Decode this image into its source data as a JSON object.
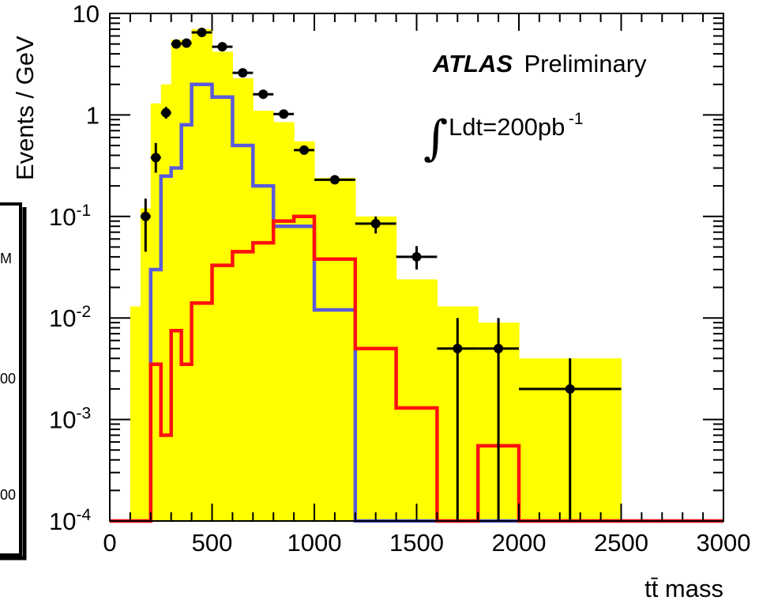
{
  "chart_data": {
    "type": "histogram",
    "title": "",
    "xlabel": "tt̄ mass",
    "ylabel": "Events / GeV",
    "xlim": [
      0,
      3000
    ],
    "ylim": [
      0.0001,
      10
    ],
    "yscale": "log",
    "x_ticks": [
      "0",
      "500",
      "1000",
      "1500",
      "2000",
      "2500",
      "3000"
    ],
    "y_ticks": [
      {
        "base": "10",
        "exp": ""
      },
      {
        "base": "1",
        "exp": ""
      },
      {
        "base": "10",
        "exp": "-1"
      },
      {
        "base": "10",
        "exp": "-2"
      },
      {
        "base": "10",
        "exp": "-3"
      },
      {
        "base": "10",
        "exp": "-4"
      }
    ],
    "annotations": {
      "experiment": "ATLAS",
      "status": "Preliminary",
      "lumi_integral": "∫",
      "lumi_text": "Ldt=200pb",
      "lumi_exp": "-1"
    },
    "legend_fragments": [
      "M",
      "00",
      "00"
    ],
    "colors": {
      "total_fill": "#ffff00",
      "blue_line": "#5a5adc",
      "red_line": "#ff1010",
      "points": "#000000"
    },
    "series": [
      {
        "kind": "filled_histogram",
        "color": "#ffff00",
        "edges": [
          100,
          150,
          200,
          250,
          300,
          400,
          500,
          600,
          700,
          800,
          900,
          1000,
          1200,
          1400,
          1600,
          1800,
          2000,
          2500
        ],
        "values": [
          0.013,
          0.12,
          1.3,
          2.0,
          5.5,
          7.0,
          4.2,
          2.3,
          1.1,
          0.85,
          0.55,
          0.24,
          0.1,
          0.024,
          0.013,
          0.009,
          0.004
        ]
      },
      {
        "kind": "step_line",
        "color": "#5a5adc",
        "edges": [
          0,
          200,
          250,
          300,
          350,
          400,
          500,
          600,
          700,
          800,
          900,
          1000,
          1200,
          3000
        ],
        "values": [
          0.0001,
          0.03,
          0.25,
          0.3,
          0.8,
          2.0,
          1.5,
          0.5,
          0.2,
          0.08,
          0.08,
          0.012,
          0.0001
        ]
      },
      {
        "kind": "step_line",
        "color": "#ff1010",
        "edges": [
          0,
          200,
          250,
          300,
          350,
          400,
          500,
          600,
          700,
          800,
          900,
          1000,
          1200,
          1400,
          1600,
          1800,
          2000,
          3000
        ],
        "values": [
          0.0001,
          0.0035,
          0.0007,
          0.0075,
          0.0035,
          0.014,
          0.033,
          0.045,
          0.055,
          0.09,
          0.1,
          0.038,
          0.005,
          0.0013,
          0.0001,
          0.00055,
          0.0001
        ]
      },
      {
        "kind": "points_with_errors",
        "color": "#000000",
        "points": [
          {
            "x": 175,
            "y": 0.1,
            "ylo": 0.045,
            "yhi": 0.15
          },
          {
            "x": 225,
            "y": 0.38,
            "ylo": 0.27,
            "yhi": 0.53
          },
          {
            "x": 275,
            "y": 1.05,
            "ylo": 0.92,
            "yhi": 1.2
          },
          {
            "x": 325,
            "y": 5.0,
            "ylo": 4.9,
            "yhi": 5.1
          },
          {
            "x": 375,
            "y": 5.1,
            "ylo": 5.0,
            "yhi": 5.2
          },
          {
            "x": 450,
            "y": 6.5,
            "ylo": 6.4,
            "yhi": 6.6
          },
          {
            "x": 550,
            "y": 4.7,
            "ylo": 4.6,
            "yhi": 4.8
          },
          {
            "x": 650,
            "y": 2.6,
            "ylo": 2.5,
            "yhi": 2.7
          },
          {
            "x": 750,
            "y": 1.6,
            "ylo": 1.5,
            "yhi": 1.7
          },
          {
            "x": 850,
            "y": 1.02,
            "ylo": 0.96,
            "yhi": 1.08
          },
          {
            "x": 950,
            "y": 0.45,
            "ylo": 0.41,
            "yhi": 0.5
          },
          {
            "x": 1100,
            "y": 0.23,
            "ylo": 0.21,
            "yhi": 0.25
          },
          {
            "x": 1300,
            "y": 0.085,
            "ylo": 0.068,
            "yhi": 0.1
          },
          {
            "x": 1500,
            "y": 0.04,
            "ylo": 0.03,
            "yhi": 0.051
          },
          {
            "x": 1700,
            "y": 0.005,
            "ylo": 0.0001,
            "yhi": 0.01
          },
          {
            "x": 1900,
            "y": 0.005,
            "ylo": 0.0001,
            "yhi": 0.01
          },
          {
            "x": 2250,
            "y": 0.002,
            "ylo": 0.0001,
            "yhi": 0.004
          }
        ],
        "xerr": [
          25,
          25,
          25,
          25,
          25,
          50,
          50,
          50,
          50,
          50,
          50,
          100,
          100,
          100,
          100,
          100,
          250
        ]
      }
    ]
  }
}
